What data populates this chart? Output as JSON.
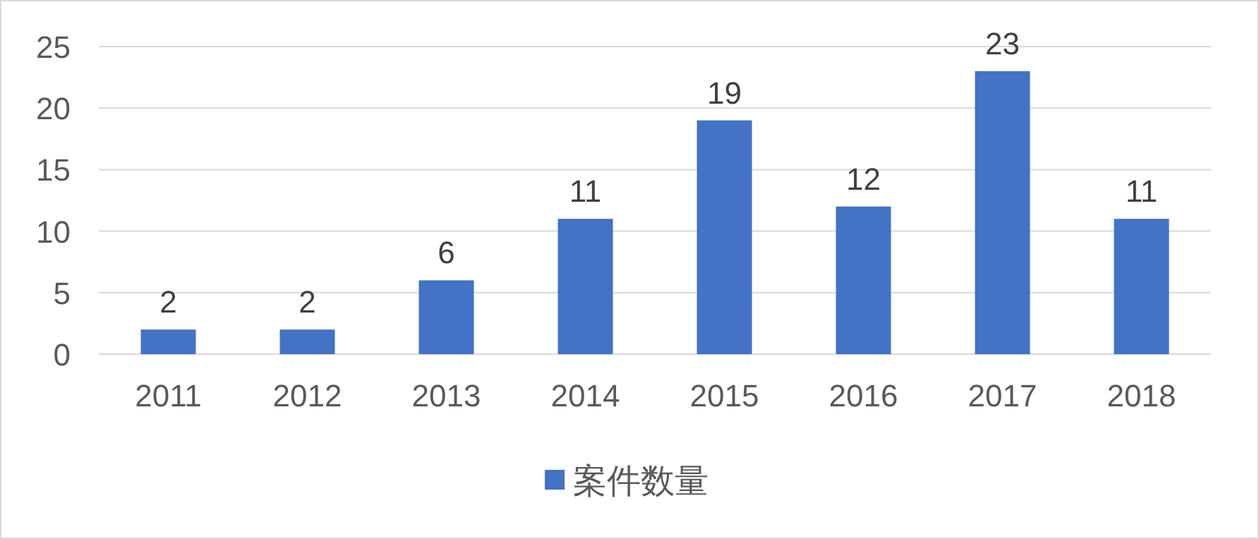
{
  "chart_data": {
    "type": "bar",
    "categories": [
      "2011",
      "2012",
      "2013",
      "2014",
      "2015",
      "2016",
      "2017",
      "2018"
    ],
    "series": [
      {
        "name": "案件数量",
        "color": "#4472c4",
        "values": [
          2,
          2,
          6,
          11,
          19,
          12,
          23,
          11
        ]
      }
    ],
    "ylim": [
      0,
      25
    ],
    "yticks": [
      0,
      5,
      10,
      15,
      20,
      25
    ],
    "grid": "y",
    "data_labels": true,
    "legend": "bottom"
  }
}
